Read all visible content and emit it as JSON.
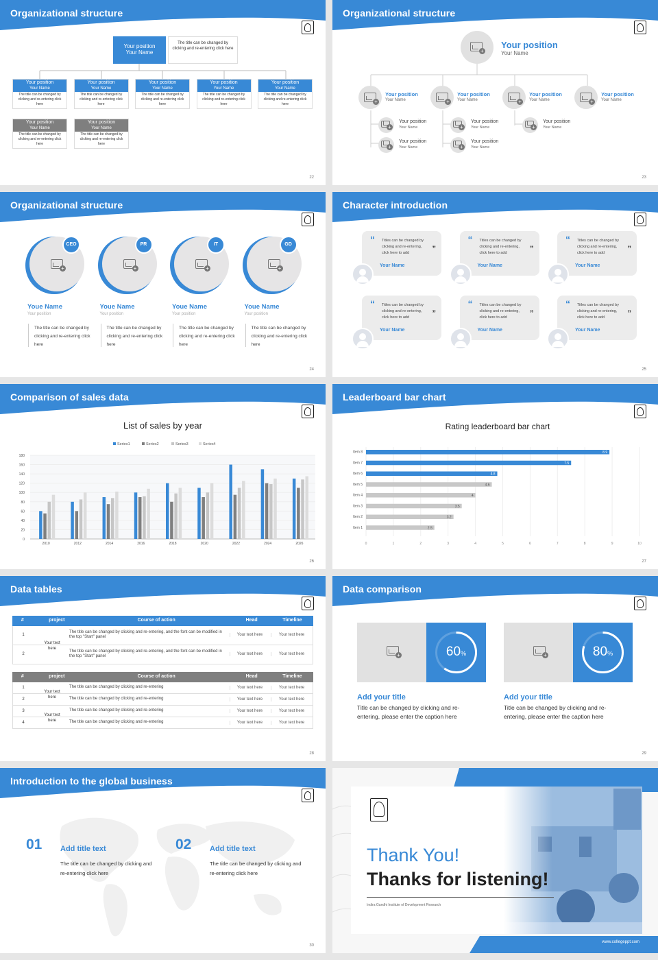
{
  "slides": {
    "s22": {
      "title": "Organizational structure",
      "num": "22",
      "top_box": {
        "pos": "Your position",
        "name": "Your Name",
        "desc": "The title can be changed by clicking and re-entering click here"
      },
      "cards": [
        {
          "pos": "Your position",
          "name": "Your Name",
          "desc": "The title can be changed by clicking and re-entering click here"
        },
        {
          "pos": "Your position",
          "name": "Your Name",
          "desc": "The title can be changed by clicking and re-entering click here"
        },
        {
          "pos": "Your position",
          "name": "Your Name",
          "desc": "The title can be changed by clicking and re-entering click here"
        },
        {
          "pos": "Your position",
          "name": "Your Name",
          "desc": "The title can be changed by clicking and re-entering click here"
        },
        {
          "pos": "Your position",
          "name": "Your Name",
          "desc": "The title can be changed by clicking and re-entering click here"
        }
      ],
      "gray_cards": [
        {
          "pos": "Your position",
          "name": "Your Name",
          "desc": "The title can be changed by clicking and re-entering click here"
        },
        {
          "pos": "Your position",
          "name": "Your Name",
          "desc": "The title can be changed by clicking and re-entering click here"
        }
      ]
    },
    "s23": {
      "title": "Organizational structure",
      "num": "23",
      "top": {
        "pos": "Your position",
        "name": "Your Name"
      },
      "row": [
        {
          "pos": "Your position",
          "name": "Your Name"
        },
        {
          "pos": "Your position",
          "name": "Your Name"
        },
        {
          "pos": "Your position",
          "name": "Your Name"
        },
        {
          "pos": "Your position",
          "name": "Your Name"
        }
      ],
      "sub": [
        {
          "pos": "Your position",
          "name": "Your Name"
        },
        {
          "pos": "Your position",
          "name": "Your Name"
        },
        {
          "pos": "Your position",
          "name": "Your Name"
        },
        {
          "pos": "Your position",
          "name": "Your Name"
        },
        {
          "pos": "Your position",
          "name": "Your Name"
        }
      ]
    },
    "s24": {
      "title": "Organizational structure",
      "num": "24",
      "people": [
        {
          "badge": "CEO",
          "name": "Youe Name",
          "pos": "Your position",
          "desc": "The title can be changed by clicking and re-entering click here"
        },
        {
          "badge": "PR",
          "name": "Youe Name",
          "pos": "Your position",
          "desc": "The title can be changed by clicking and re-entering click here"
        },
        {
          "badge": "IT",
          "name": "Youe Name",
          "pos": "Your position",
          "desc": "The title can be changed by clicking and re-entering click here"
        },
        {
          "badge": "GD",
          "name": "Youe Name",
          "pos": "Your position",
          "desc": "The title can be changed by clicking and re-entering click here"
        }
      ]
    },
    "s25": {
      "title": "Character introduction",
      "num": "25",
      "quote": "Titles can be changed by clicking and re-entering, click here to add",
      "name": "Your Name"
    },
    "s26": {
      "title": "Comparison of sales data",
      "num": "26"
    },
    "s27": {
      "title": "Leaderboard bar chart",
      "num": "27"
    },
    "s28": {
      "title": "Data tables",
      "num": "28",
      "t1": {
        "headers": [
          "#",
          "project",
          "Course of action",
          "Head",
          "Timeline"
        ],
        "merged": "Your text here",
        "rows": [
          {
            "n": "1",
            "action": "The title can be changed by clicking and re-entering, and the font can be modified in the top \"Start\" panel",
            "head": "Your text here",
            "time": "Your text here"
          },
          {
            "n": "2",
            "action": "The title can be changed by clicking and re-entering, and the font can be modified in the top \"Start\" panel",
            "head": "Your text here",
            "time": "Your text here"
          }
        ]
      },
      "t2": {
        "headers": [
          "#",
          "project",
          "Course of action",
          "Head",
          "Timeline"
        ],
        "merged": [
          "Your text here",
          "Your text here"
        ],
        "rows": [
          {
            "n": "1",
            "action": "The title can be changed by clicking and re-entering",
            "head": "Your text here",
            "time": "Your text here"
          },
          {
            "n": "2",
            "action": "The title can be changed by clicking and re-entering",
            "head": "Your text here",
            "time": "Your text here"
          },
          {
            "n": "3",
            "action": "The title can be changed by clicking and re-entering",
            "head": "Your text here",
            "time": "Your text here"
          },
          {
            "n": "4",
            "action": "The title can be changed by clicking and re-entering",
            "head": "Your text here",
            "time": "Your text here"
          }
        ]
      }
    },
    "s29": {
      "title": "Data comparison",
      "num": "29",
      "items": [
        {
          "pct": "60",
          "unit": "%",
          "value": 60,
          "title": "Add your title",
          "desc": "Title can be changed by clicking and re-entering, please enter the caption here"
        },
        {
          "pct": "80",
          "unit": "%",
          "value": 80,
          "title": "Add your title",
          "desc": "Title can be changed by clicking and re-entering, please enter the caption here"
        }
      ]
    },
    "s30": {
      "title": "Introduction to the global business",
      "num": "30",
      "items": [
        {
          "n": "01",
          "title": "Add title text",
          "desc": "The title can be changed by clicking and re-entering click here"
        },
        {
          "n": "02",
          "title": "Add title text",
          "desc": "The title can be changed by clicking and re-entering click here"
        }
      ]
    },
    "s31": {
      "thanks": "Thank You!",
      "listening": "Thanks for listening!",
      "institute": "Indira Gandhi Institute of Development Research",
      "site": "www.collegeppt.com"
    }
  },
  "colors": {
    "accent": "#3889d6",
    "gray": "#7f7f7f",
    "light_gray": "#c8c8c8"
  },
  "chart_data": [
    {
      "type": "bar",
      "title": "List of sales by year",
      "categories": [
        "2010",
        "2012",
        "2014",
        "2016",
        "2018",
        "2020",
        "2022",
        "2024",
        "2026"
      ],
      "series": [
        {
          "name": "Series1",
          "values": [
            60,
            80,
            90,
            100,
            120,
            110,
            160,
            150,
            130
          ]
        },
        {
          "name": "Series2",
          "values": [
            55,
            60,
            75,
            90,
            80,
            90,
            95,
            120,
            110
          ]
        },
        {
          "name": "Series3",
          "values": [
            80,
            85,
            88,
            92,
            98,
            100,
            110,
            118,
            128
          ]
        },
        {
          "name": "Series4",
          "values": [
            95,
            100,
            102,
            108,
            110,
            120,
            125,
            130,
            135
          ]
        }
      ],
      "ylim": [
        0,
        180
      ],
      "yticks": [
        0,
        20,
        40,
        60,
        80,
        100,
        120,
        140,
        160,
        180
      ],
      "legend": "top"
    },
    {
      "type": "bar",
      "orientation": "horizontal",
      "title": "Rating leaderboard bar chart",
      "categories": [
        "Item 8",
        "Item 7",
        "Item 6",
        "Item 5",
        "Item 4",
        "Item 3",
        "Item 2",
        "Item 1"
      ],
      "values": [
        8.9,
        7.5,
        4.8,
        4.6,
        4,
        3.5,
        3.2,
        2.5
      ],
      "highlight": [
        "Item 8",
        "Item 7",
        "Item 6"
      ],
      "xlim": [
        0,
        10
      ],
      "xticks": [
        0,
        1,
        2,
        3,
        4,
        5,
        6,
        7,
        8,
        9,
        10
      ]
    }
  ]
}
